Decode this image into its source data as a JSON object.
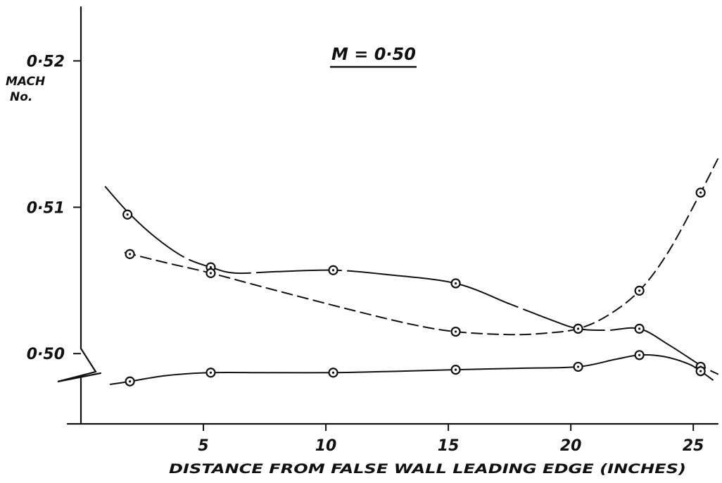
{
  "chart_data": {
    "type": "line",
    "title": "M = 0·50",
    "xlabel": "DISTANCE FROM FALSE WALL LEADING EDGE (INCHES)",
    "ylabel": [
      "MACH",
      "No."
    ],
    "x_ticks": [
      {
        "value": 5,
        "label": "5"
      },
      {
        "value": 10,
        "label": "10"
      },
      {
        "value": 15,
        "label": "15"
      },
      {
        "value": 20,
        "label": "20"
      },
      {
        "value": 25,
        "label": "25"
      }
    ],
    "y_ticks": [
      {
        "value": 0.5,
        "label": "0·50"
      },
      {
        "value": 0.51,
        "label": "0·51"
      },
      {
        "value": 0.52,
        "label": "0·52"
      }
    ],
    "xlim": [
      0,
      26
    ],
    "ylim": [
      0.4952,
      0.5232
    ],
    "broken_y_axis": true,
    "grid": false,
    "legend": "none",
    "series": [
      {
        "style": "solid-long-dash",
        "points": [
          {
            "x": 1.9,
            "y": 0.5095
          },
          {
            "x": 5.3,
            "y": 0.5059
          },
          {
            "x": 10.3,
            "y": 0.5057
          },
          {
            "x": 15.3,
            "y": 0.5048
          },
          {
            "x": 20.3,
            "y": 0.5017
          },
          {
            "x": 22.8,
            "y": 0.5017
          },
          {
            "x": 25.3,
            "y": 0.4991
          }
        ],
        "curve": [
          [
            1.0,
            0.5114
          ],
          [
            1.9,
            0.5097
          ],
          [
            3.0,
            0.508
          ],
          [
            4.2,
            0.5066
          ],
          [
            5.3,
            0.5059
          ],
          [
            6.3,
            0.5055
          ],
          [
            8.0,
            0.5056
          ],
          [
            10.3,
            0.5057
          ],
          [
            12.5,
            0.5054
          ],
          [
            15.3,
            0.5048
          ],
          [
            17.5,
            0.5034
          ],
          [
            19.2,
            0.5023
          ],
          [
            20.3,
            0.5017
          ],
          [
            21.5,
            0.5016
          ],
          [
            22.8,
            0.5017
          ],
          [
            24.0,
            0.5006
          ],
          [
            25.3,
            0.4992
          ],
          [
            26.0,
            0.4986
          ]
        ]
      },
      {
        "style": "short-dash",
        "points": [
          {
            "x": 2.0,
            "y": 0.5068
          },
          {
            "x": 5.3,
            "y": 0.5055
          },
          {
            "x": 15.3,
            "y": 0.5015
          },
          {
            "x": 20.3,
            "y": 0.5017
          },
          {
            "x": 22.8,
            "y": 0.5043
          },
          {
            "x": 25.3,
            "y": 0.511
          }
        ],
        "curve": [
          [
            1.8,
            0.5069
          ],
          [
            3.5,
            0.5062
          ],
          [
            5.3,
            0.5055
          ],
          [
            8.0,
            0.5043
          ],
          [
            11.0,
            0.503
          ],
          [
            13.5,
            0.502
          ],
          [
            15.3,
            0.5015
          ],
          [
            17.5,
            0.5013
          ],
          [
            19.0,
            0.5014
          ],
          [
            20.3,
            0.5017
          ],
          [
            21.5,
            0.5026
          ],
          [
            22.8,
            0.5043
          ],
          [
            24.0,
            0.507
          ],
          [
            25.3,
            0.511
          ],
          [
            26.0,
            0.5133
          ]
        ]
      },
      {
        "style": "solid",
        "points": [
          {
            "x": 2.0,
            "y": 0.4981
          },
          {
            "x": 5.3,
            "y": 0.4987
          },
          {
            "x": 10.3,
            "y": 0.4987
          },
          {
            "x": 15.3,
            "y": 0.4989
          },
          {
            "x": 20.3,
            "y": 0.4991
          },
          {
            "x": 22.8,
            "y": 0.4999
          },
          {
            "x": 25.3,
            "y": 0.4988
          }
        ],
        "curve": [
          [
            1.2,
            0.4979
          ],
          [
            2.0,
            0.4981
          ],
          [
            3.5,
            0.4985
          ],
          [
            5.3,
            0.4987
          ],
          [
            7.5,
            0.4987
          ],
          [
            10.3,
            0.4987
          ],
          [
            13.0,
            0.4988
          ],
          [
            15.3,
            0.4989
          ],
          [
            18.0,
            0.499
          ],
          [
            20.3,
            0.4991
          ],
          [
            21.8,
            0.4996
          ],
          [
            22.8,
            0.4999
          ],
          [
            23.8,
            0.4998
          ],
          [
            24.8,
            0.4993
          ],
          [
            25.3,
            0.4988
          ],
          [
            25.8,
            0.4982
          ]
        ]
      }
    ]
  }
}
